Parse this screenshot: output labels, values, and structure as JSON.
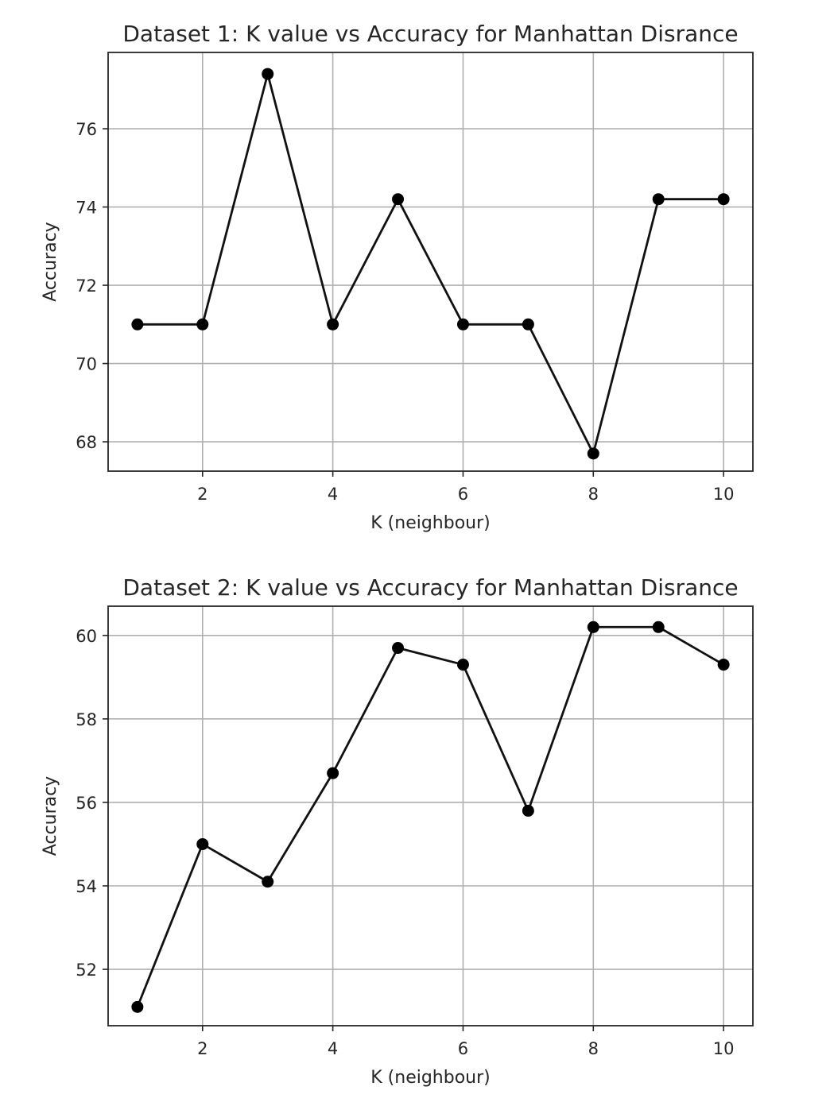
{
  "chart_data": [
    {
      "type": "line",
      "title": "Dataset 1: K value vs Accuracy for Manhattan Disrance",
      "xlabel": "K (neighbour)",
      "ylabel": "Accuracy",
      "x": [
        1,
        2,
        3,
        4,
        5,
        6,
        7,
        8,
        9,
        10
      ],
      "series": [
        {
          "values": [
            71.0,
            71.0,
            77.4,
            71.0,
            74.2,
            71.0,
            71.0,
            67.7,
            74.2,
            74.2
          ],
          "color": "#000000"
        }
      ],
      "xticks": [
        2,
        4,
        6,
        8,
        10
      ],
      "yticks": [
        68,
        70,
        72,
        74,
        76
      ],
      "xlim": [
        0.55,
        10.45
      ],
      "ylim": [
        67.25,
        77.95
      ],
      "grid": true,
      "legend": "none"
    },
    {
      "type": "line",
      "title": "Dataset 2: K value vs Accuracy for Manhattan Disrance",
      "xlabel": "K (neighbour)",
      "ylabel": "Accuracy",
      "x": [
        1,
        2,
        3,
        4,
        5,
        6,
        7,
        8,
        9,
        10
      ],
      "series": [
        {
          "values": [
            51.1,
            55.0,
            54.1,
            56.7,
            59.7,
            59.3,
            55.8,
            60.2,
            60.2,
            59.3
          ],
          "color": "#000000"
        }
      ],
      "xticks": [
        2,
        4,
        6,
        8,
        10
      ],
      "yticks": [
        52,
        54,
        56,
        58,
        60
      ],
      "xlim": [
        0.55,
        10.45
      ],
      "ylim": [
        50.65,
        60.7
      ],
      "grid": true,
      "legend": "none"
    }
  ]
}
